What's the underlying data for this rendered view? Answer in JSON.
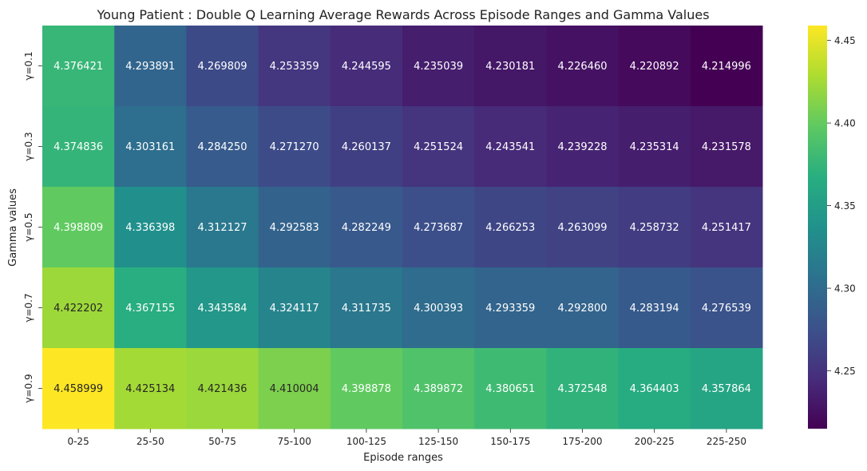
{
  "chart_data": {
    "type": "heatmap",
    "title": "Young Patient : Double Q Learning Average Rewards Across Episode Ranges and Gamma Values",
    "xlabel": "Episode ranges",
    "ylabel": "Gamma values",
    "x_categories": [
      "0-25",
      "25-50",
      "50-75",
      "75-100",
      "100-125",
      "125-150",
      "150-175",
      "175-200",
      "200-225",
      "225-250"
    ],
    "y_categories": [
      "γ=0.1",
      "γ=0.3",
      "γ=0.5",
      "γ=0.7",
      "γ=0.9"
    ],
    "values": [
      [
        4.376421,
        4.293891,
        4.269809,
        4.253359,
        4.244595,
        4.235039,
        4.230181,
        4.22646,
        4.220892,
        4.214996
      ],
      [
        4.374836,
        4.303161,
        4.28425,
        4.27127,
        4.260137,
        4.251524,
        4.243541,
        4.239228,
        4.235314,
        4.231578
      ],
      [
        4.398809,
        4.336398,
        4.312127,
        4.292583,
        4.282249,
        4.273687,
        4.266253,
        4.263099,
        4.258732,
        4.251417
      ],
      [
        4.422202,
        4.367155,
        4.343584,
        4.324117,
        4.311735,
        4.300393,
        4.293359,
        4.2928,
        4.283194,
        4.276539
      ],
      [
        4.458999,
        4.425134,
        4.421436,
        4.410004,
        4.398878,
        4.389872,
        4.380651,
        4.372548,
        4.364403,
        4.357864
      ]
    ],
    "colormap": "viridis",
    "colorbar": {
      "range": [
        4.214996,
        4.458999
      ],
      "ticks": [
        4.25,
        4.3,
        4.35,
        4.4,
        4.45
      ]
    },
    "annotation_dark_threshold": 4.4
  }
}
